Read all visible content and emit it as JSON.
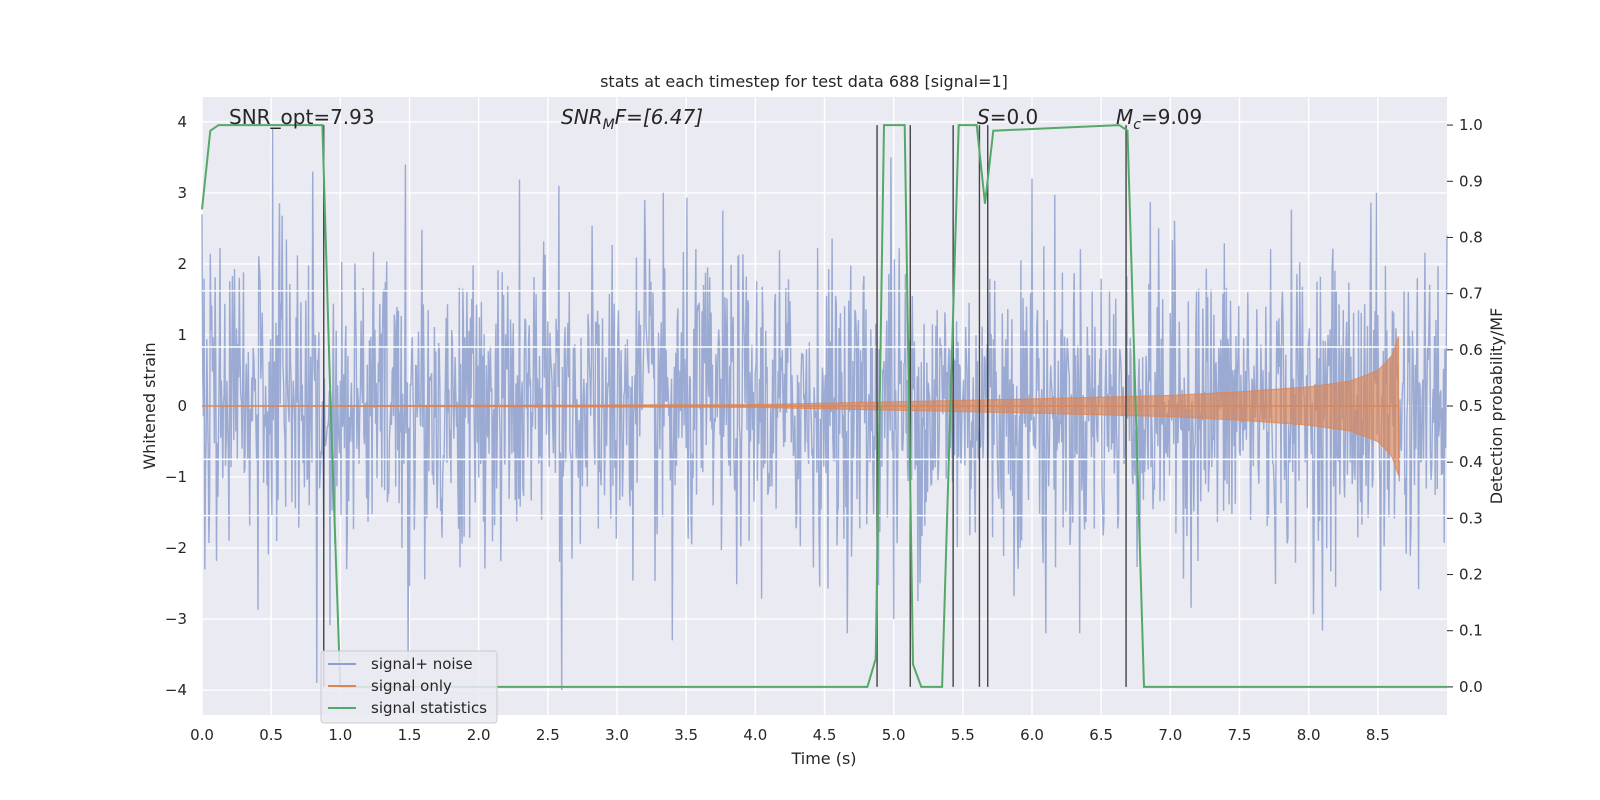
{
  "chart_data": {
    "type": "line",
    "title": "stats at each timestep for test data 688 [signal=1]",
    "xlabel": "Time (s)",
    "ylabel": "Whitened strain",
    "ylabel_right": "Detection probability/MF",
    "xlim": [
      0.0,
      9.0
    ],
    "ylim": [
      -4.35,
      4.35
    ],
    "ylim_right": [
      -0.05,
      1.05
    ],
    "x_ticks": [
      "0.0",
      "0.5",
      "1.0",
      "1.5",
      "2.0",
      "2.5",
      "3.0",
      "3.5",
      "4.0",
      "4.5",
      "5.0",
      "5.5",
      "6.0",
      "6.5",
      "7.0",
      "7.5",
      "8.0",
      "8.5"
    ],
    "y_ticks": [
      "4",
      "3",
      "2",
      "1",
      "0",
      "−1",
      "−2",
      "−3",
      "−4"
    ],
    "y_right_ticks": [
      "1.0",
      "0.9",
      "0.8",
      "0.7",
      "0.6",
      "0.5",
      "0.4",
      "0.3",
      "0.2",
      "0.1",
      "0.0"
    ],
    "grid": true,
    "legend_position": "lower-left",
    "annotations": {
      "snr_opt": "SNR_opt=7.93",
      "snr_mf_sym": "SNR",
      "snr_mf_sub": "M",
      "snr_mf_rest": "F=[6.47]",
      "s_sym": "S",
      "s_rest": "=0.0",
      "mc_sym": "M",
      "mc_sub": "c",
      "mc_rest": "=9.09"
    },
    "series": [
      {
        "name": "signal+ noise",
        "color": "#8c9fcd",
        "description_values": "whitened noisy strain, roughly Gaussian, mostly within ±3",
        "x": [
          0.0,
          0.02,
          0.51,
          0.54,
          0.8,
          0.83,
          1.47,
          1.49,
          2.58,
          2.6,
          3.2,
          3.4,
          4.98,
          5.0,
          6.0,
          6.1,
          8.49,
          8.52,
          9.0
        ],
        "y": [
          2.7,
          -2.3,
          3.9,
          -1.9,
          3.3,
          -3.9,
          3.4,
          -3.7,
          3.1,
          -4.0,
          2.9,
          -3.3,
          3.5,
          -3.0,
          3.2,
          -3.2,
          3.0,
          -2.6,
          2.4
        ]
      },
      {
        "name": "signal only",
        "color": "#dd8452",
        "x": [
          0.0,
          4.0,
          5.0,
          6.0,
          7.0,
          7.5,
          8.0,
          8.3,
          8.5,
          8.6,
          8.65
        ],
        "amplitude": [
          0.0,
          0.02,
          0.06,
          0.1,
          0.15,
          0.2,
          0.27,
          0.35,
          0.5,
          0.7,
          0.98
        ]
      },
      {
        "name": "signal statistics",
        "color": "#55a868",
        "x": [
          0.0,
          0.06,
          0.12,
          0.87,
          0.93,
          1.0,
          4.81,
          4.87,
          4.93,
          5.08,
          5.14,
          5.2,
          5.35,
          5.41,
          5.47,
          5.6,
          5.66,
          5.72,
          6.63,
          6.69,
          6.81,
          9.0
        ],
        "y": [
          0.85,
          0.99,
          1.0,
          1.0,
          0.5,
          0.0,
          0.0,
          0.05,
          1.0,
          1.0,
          0.04,
          0.0,
          0.0,
          0.5,
          1.0,
          1.0,
          0.86,
          0.99,
          1.0,
          0.99,
          0.0,
          0.0
        ]
      }
    ],
    "vertical_lines_x": [
      0.88,
      4.88,
      5.12,
      5.43,
      5.62,
      5.68,
      6.68
    ],
    "white_hlines_right": [
      0.705,
      0.605,
      0.405,
      0.305
    ]
  }
}
